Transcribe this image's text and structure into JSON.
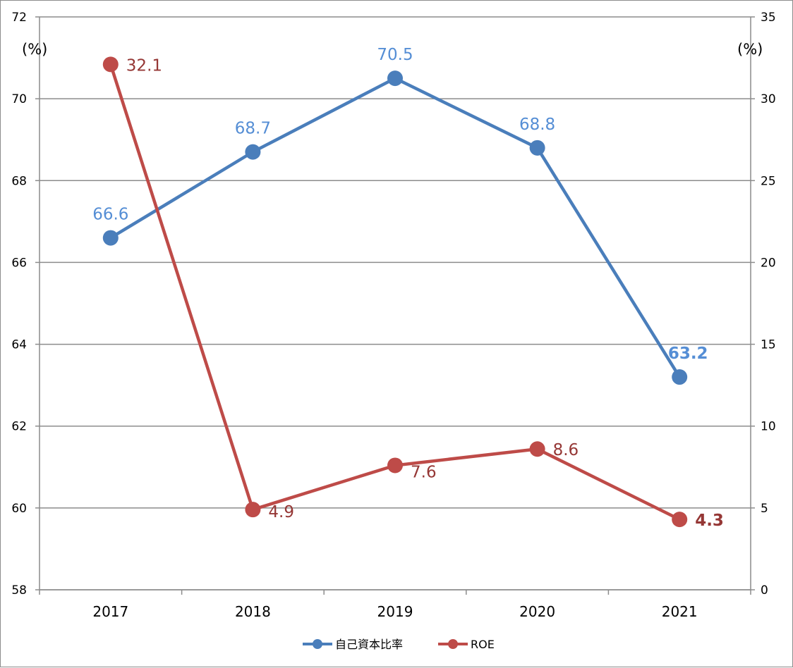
{
  "chart_data": {
    "type": "line",
    "categories": [
      "2017",
      "2018",
      "2019",
      "2020",
      "2021"
    ],
    "y_left": {
      "unit_label": "(%)",
      "ylim": [
        58,
        72
      ],
      "ticks": [
        "58",
        "60",
        "62",
        "64",
        "66",
        "68",
        "70",
        "72"
      ]
    },
    "y_right": {
      "unit_label": "(%)",
      "ylim": [
        0,
        35
      ],
      "ticks": [
        "0",
        "5",
        "10",
        "15",
        "20",
        "25",
        "30",
        "35"
      ]
    },
    "series": [
      {
        "name": "自己資本比率",
        "axis": "left",
        "color": "#4a7ebb",
        "label_color": "#558ed5",
        "values": [
          66.6,
          68.7,
          70.5,
          68.8,
          63.2
        ],
        "labels": [
          "66.6",
          "68.7",
          "70.5",
          "68.8",
          "63.2"
        ],
        "bold_last": true
      },
      {
        "name": "ROE",
        "axis": "right",
        "color": "#be4b48",
        "label_color": "#953735",
        "values": [
          32.1,
          4.9,
          7.6,
          8.6,
          4.3
        ],
        "labels": [
          "32.1",
          "4.9",
          "7.6",
          "8.6",
          "4.3"
        ],
        "bold_last": true
      }
    ],
    "grid": true,
    "legend": "bottom"
  }
}
